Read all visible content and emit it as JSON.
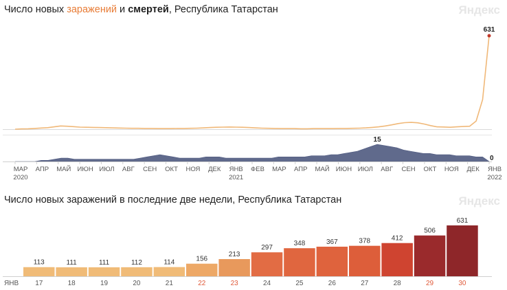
{
  "header": {
    "title_prefix": "Число новых ",
    "title_cases": "заражений",
    "title_and": " и ",
    "title_deaths": "смертей",
    "title_suffix": ", Республика Татарстан",
    "watermark": "Яндекс"
  },
  "bottom_header": {
    "title": "Число новых заражений в последние две недели, Республика Татарстан",
    "watermark": "Яндекс"
  },
  "colors": {
    "cases_line": "#f0b878",
    "deaths_area": "#4f5a80",
    "accent_red": "#c0392b",
    "weekend_label": "#e05a3a"
  },
  "chart_data": [
    {
      "type": "line",
      "series": [
        {
          "name": "заражений",
          "values": [
            0,
            2,
            3,
            5,
            8,
            10,
            16,
            22,
            20,
            17,
            14,
            13,
            12,
            11,
            10,
            9,
            8,
            7,
            6,
            6,
            5,
            5,
            4,
            4,
            4,
            5,
            5,
            6,
            7,
            9,
            11,
            13,
            14,
            15,
            14,
            13,
            11,
            9,
            7,
            6,
            5,
            4,
            4,
            4,
            3,
            3,
            4,
            4,
            4,
            4,
            5,
            5,
            6,
            7,
            9,
            12,
            16,
            22,
            29,
            38,
            44,
            46,
            43,
            35,
            24,
            16,
            15,
            13,
            16,
            18,
            20,
            55,
            200,
            631
          ]
        }
      ],
      "x_range": [
        "2020-03",
        "2022-01"
      ],
      "ylim": [
        0,
        631
      ],
      "annotations": [
        {
          "label": "631"
        }
      ],
      "x_tick_labels": [
        "МАР",
        "АПР",
        "МАЙ",
        "ИЮН",
        "ИЮЛ",
        "АВГ",
        "СЕН",
        "ОКТ",
        "НОЯ",
        "ДЕК",
        "ЯНВ",
        "ФЕВ",
        "МАР",
        "АПР",
        "МАЙ",
        "ИЮН",
        "ИЮЛ",
        "АВГ",
        "СЕН",
        "ОКТ",
        "НОЯ",
        "ДЕК",
        "ЯНВ"
      ],
      "year_labels": [
        "2020",
        "2021",
        "2022"
      ]
    },
    {
      "type": "area",
      "series": [
        {
          "name": "смертей",
          "values": [
            0,
            0,
            0,
            0,
            1,
            1,
            2,
            3,
            3,
            2,
            2,
            2,
            2,
            2,
            2,
            2,
            2,
            2,
            2,
            3,
            4,
            5,
            6,
            5,
            4,
            3,
            3,
            3,
            3,
            4,
            4,
            4,
            3,
            3,
            3,
            3,
            3,
            3,
            3,
            3,
            4,
            4,
            4,
            4,
            4,
            5,
            5,
            5,
            6,
            6,
            7,
            8,
            9,
            11,
            13,
            15,
            14,
            13,
            12,
            10,
            9,
            8,
            7,
            7,
            6,
            6,
            6,
            5,
            5,
            5,
            4,
            4,
            0
          ]
        }
      ],
      "x_range": [
        "2020-03",
        "2022-01"
      ],
      "ylim": [
        0,
        15
      ],
      "annotations": [
        {
          "label": "15"
        },
        {
          "label": "0"
        }
      ]
    },
    {
      "type": "bar",
      "month_label": "ЯНВ",
      "categories": [
        "17",
        "18",
        "19",
        "20",
        "21",
        "22",
        "23",
        "24",
        "25",
        "26",
        "27",
        "28",
        "29",
        "30"
      ],
      "values": [
        113,
        111,
        111,
        112,
        114,
        156,
        213,
        297,
        348,
        367,
        378,
        412,
        506,
        631
      ],
      "value_labels": [
        "113",
        "111",
        "111",
        "112",
        "114",
        "156",
        "213",
        "297",
        "348",
        "367",
        "378",
        "412",
        "506",
        "631"
      ],
      "bar_colors": [
        "#f0bb77",
        "#f0bb77",
        "#f0bb77",
        "#f0bb77",
        "#f0bb77",
        "#eda866",
        "#e8995c",
        "#e26c44",
        "#e0663f",
        "#df633d",
        "#dd5e3a",
        "#cf4430",
        "#9a2a2c",
        "#8e2629"
      ],
      "weekend_categories": [
        "22",
        "23",
        "29",
        "30"
      ],
      "ylim": [
        0,
        631
      ]
    }
  ]
}
